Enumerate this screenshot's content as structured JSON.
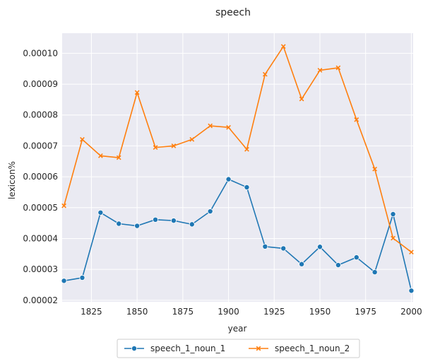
{
  "chart_data": {
    "type": "line",
    "title": "speech",
    "xlabel": "year",
    "ylabel": "lexicon%",
    "xlim": [
      1809,
      2001
    ],
    "ylim": [
      1.95e-05,
      0.0001065
    ],
    "xticks": [
      1825,
      1850,
      1875,
      1900,
      1925,
      1950,
      1975,
      2000
    ],
    "xtick_labels": [
      "1825",
      "1850",
      "1875",
      "1900",
      "1925",
      "1950",
      "1975",
      "2000"
    ],
    "yticks": [
      2e-05,
      3e-05,
      4e-05,
      5e-05,
      6e-05,
      7e-05,
      8e-05,
      9e-05,
      0.0001
    ],
    "ytick_labels": [
      "0.00002",
      "0.00003",
      "0.00004",
      "0.00005",
      "0.00006",
      "0.00007",
      "0.00008",
      "0.00009",
      "0.00010"
    ],
    "grid": true,
    "legend_position": "bottom-center",
    "x": [
      1810,
      1820,
      1830,
      1840,
      1850,
      1860,
      1870,
      1880,
      1890,
      1900,
      1910,
      1920,
      1930,
      1940,
      1950,
      1960,
      1970,
      1980,
      1990,
      2000
    ],
    "series": [
      {
        "name": "speech_1_noun_1",
        "color": "#1f77b4",
        "marker": "circle",
        "values": [
          2.63e-05,
          2.73e-05,
          4.84e-05,
          4.48e-05,
          4.41e-05,
          4.61e-05,
          4.58e-05,
          4.46e-05,
          4.88e-05,
          5.92e-05,
          5.66e-05,
          3.74e-05,
          3.68e-05,
          3.17e-05,
          3.73e-05,
          3.14e-05,
          3.39e-05,
          2.91e-05,
          4.79e-05,
          2.31e-05
        ]
      },
      {
        "name": "speech_1_noun_2",
        "color": "#ff7f0e",
        "marker": "x",
        "values": [
          5.06e-05,
          7.21e-05,
          6.68e-05,
          6.62e-05,
          8.73e-05,
          6.95e-05,
          7e-05,
          7.21e-05,
          7.65e-05,
          7.6e-05,
          6.89e-05,
          9.32e-05,
          0.0001022,
          8.52e-05,
          9.45e-05,
          9.53e-05,
          7.85e-05,
          6.25e-05,
          4.01e-05,
          3.56e-05
        ]
      }
    ]
  }
}
